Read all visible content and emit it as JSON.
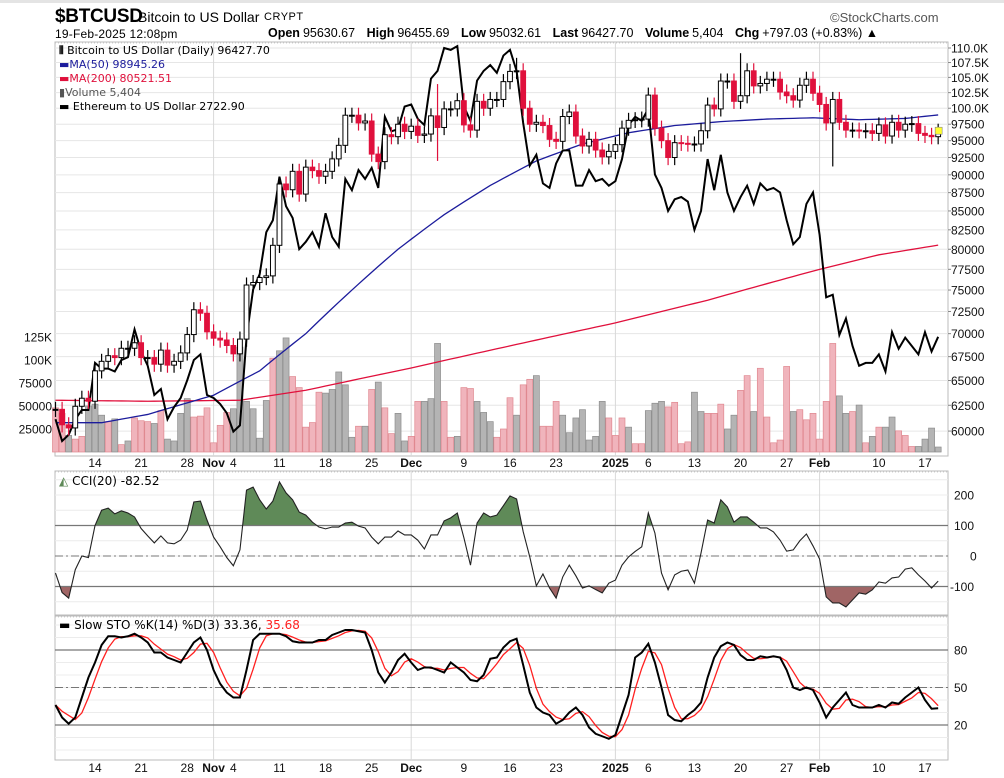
{
  "header": {
    "symbol": "$BTCUSD",
    "name": "Bitcoin to US Dollar",
    "exchange": "CRYPT",
    "copyright": "©StockCharts.com",
    "datetime": "19-Feb-2025 12:08pm",
    "quote": [
      {
        "label": "Open",
        "value": "95630.67"
      },
      {
        "label": "High",
        "value": "96455.69"
      },
      {
        "label": "Low",
        "value": "95032.61"
      },
      {
        "label": "Last",
        "value": "96427.70"
      },
      {
        "label": "Volume",
        "value": "5,404"
      },
      {
        "label": "Chg",
        "value": "+797.03 (+0.83%) ▲"
      }
    ]
  },
  "legend": {
    "price": "Bitcoin to US Dollar (Daily) 96427.70",
    "ma50": "MA(50) 98945.26",
    "ma200": "MA(200) 80521.51",
    "volume": "Volume 5,404",
    "eth": "Ethereum to US Dollar 2722.90",
    "cci": "CCI(20) -82.52",
    "sto_prefix": "Slow STO %K(14) %D(3) 33.36,",
    "sto_d": "35.68"
  },
  "colors": {
    "up_candle": "#000000",
    "down_candle": "#e0103c",
    "ma50": "#1c1c9c",
    "ma200": "#e0103c",
    "eth_line": "#000000",
    "volume_up": "#b4b4b4",
    "volume_down": "#f0b4bc",
    "cci_overbought_fill": "#5f8a58",
    "cci_oversold_fill": "#a06565",
    "sto_k": "#000000",
    "sto_d": "#ff2020",
    "last_marker": "#ffff30"
  },
  "chart_data": {
    "type": "candlestick",
    "scale": "log",
    "grid": true,
    "dates": [
      "2024-10-08",
      "2024-10-09",
      "2024-10-10",
      "2024-10-11",
      "2024-10-12",
      "2024-10-13",
      "2024-10-14",
      "2024-10-15",
      "2024-10-16",
      "2024-10-17",
      "2024-10-18",
      "2024-10-19",
      "2024-10-20",
      "2024-10-21",
      "2024-10-22",
      "2024-10-23",
      "2024-10-24",
      "2024-10-25",
      "2024-10-26",
      "2024-10-27",
      "2024-10-28",
      "2024-10-29",
      "2024-10-30",
      "2024-10-31",
      "2024-11-01",
      "2024-11-02",
      "2024-11-03",
      "2024-11-04",
      "2024-11-05",
      "2024-11-06",
      "2024-11-07",
      "2024-11-08",
      "2024-11-09",
      "2024-11-10",
      "2024-11-11",
      "2024-11-12",
      "2024-11-13",
      "2024-11-14",
      "2024-11-15",
      "2024-11-16",
      "2024-11-17",
      "2024-11-18",
      "2024-11-19",
      "2024-11-20",
      "2024-11-21",
      "2024-11-22",
      "2024-11-23",
      "2024-11-24",
      "2024-11-25",
      "2024-11-26",
      "2024-11-27",
      "2024-11-28",
      "2024-11-29",
      "2024-11-30",
      "2024-12-01",
      "2024-12-02",
      "2024-12-03",
      "2024-12-04",
      "2024-12-05",
      "2024-12-06",
      "2024-12-07",
      "2024-12-08",
      "2024-12-09",
      "2024-12-10",
      "2024-12-11",
      "2024-12-12",
      "2024-12-13",
      "2024-12-14",
      "2024-12-15",
      "2024-12-16",
      "2024-12-17",
      "2024-12-18",
      "2024-12-19",
      "2024-12-20",
      "2024-12-21",
      "2024-12-22",
      "2024-12-23",
      "2024-12-24",
      "2024-12-25",
      "2024-12-26",
      "2024-12-27",
      "2024-12-28",
      "2024-12-29",
      "2024-12-30",
      "2024-12-31",
      "2025-01-01",
      "2025-01-02",
      "2025-01-03",
      "2025-01-04",
      "2025-01-05",
      "2025-01-06",
      "2025-01-07",
      "2025-01-08",
      "2025-01-09",
      "2025-01-10",
      "2025-01-11",
      "2025-01-12",
      "2025-01-13",
      "2025-01-14",
      "2025-01-15",
      "2025-01-16",
      "2025-01-17",
      "2025-01-18",
      "2025-01-19",
      "2025-01-20",
      "2025-01-21",
      "2025-01-22",
      "2025-01-23",
      "2025-01-24",
      "2025-01-25",
      "2025-01-26",
      "2025-01-27",
      "2025-01-28",
      "2025-01-29",
      "2025-01-30",
      "2025-01-31",
      "2025-02-01",
      "2025-02-02",
      "2025-02-03",
      "2025-02-04",
      "2025-02-05",
      "2025-02-06",
      "2025-02-07",
      "2025-02-08",
      "2025-02-09",
      "2025-02-10",
      "2025-02-11",
      "2025-02-12",
      "2025-02-13",
      "2025-02-14",
      "2025-02-15",
      "2025-02-16",
      "2025-02-17",
      "2025-02-18",
      "2025-02-19"
    ],
    "btc_close": [
      62100,
      60600,
      60300,
      62400,
      63200,
      62900,
      66000,
      67000,
      67600,
      67400,
      68400,
      68400,
      69000,
      67400,
      67400,
      66700,
      68200,
      66600,
      67000,
      67900,
      69900,
      72700,
      72300,
      70200,
      69500,
      69300,
      68700,
      67800,
      69400,
      75600,
      75900,
      76500,
      76700,
      80500,
      88700,
      87900,
      90500,
      87300,
      91100,
      90600,
      89800,
      90500,
      92300,
      94300,
      98900,
      98900,
      97700,
      98000,
      93000,
      91900,
      95900,
      95600,
      97500,
      96400,
      97200,
      95800,
      96000,
      98800,
      97000,
      99900,
      99900,
      101200,
      97400,
      96600,
      101100,
      100000,
      101400,
      101400,
      104300,
      106000,
      106100,
      100000,
      97500,
      97800,
      97300,
      95200,
      94900,
      98700,
      99400,
      95700,
      94200,
      95200,
      93600,
      92600,
      93400,
      94400,
      96900,
      98100,
      98200,
      98300,
      102100,
      96900,
      95000,
      92500,
      94700,
      94600,
      94500,
      94500,
      96500,
      100500,
      99900,
      104400,
      104400,
      101100,
      102000,
      106100,
      103600,
      104000,
      104700,
      104700,
      102600,
      102000,
      101300,
      103700,
      104700,
      102400,
      100600,
      97700,
      101400,
      97800,
      96600,
      96600,
      96500,
      96500,
      96100,
      97400,
      95700,
      97800,
      96600,
      97500,
      97600,
      96100,
      95800,
      95600,
      96427.7
    ],
    "btc_extremes": {
      "2024-12-05": {
        "high": 103900,
        "low": 92000
      },
      "2024-12-17": {
        "high": 108300
      },
      "2025-01-20": {
        "high": 109100
      },
      "2025-02-03": {
        "low": 91200
      }
    },
    "eth_close": [
      2440,
      2370,
      2390,
      2440,
      2470,
      2470,
      2630,
      2610,
      2610,
      2600,
      2640,
      2650,
      2750,
      2670,
      2620,
      2520,
      2540,
      2440,
      2480,
      2510,
      2570,
      2640,
      2660,
      2520,
      2510,
      2490,
      2460,
      2400,
      2420,
      2720,
      2900,
      2960,
      3130,
      3180,
      3370,
      3240,
      3190,
      3060,
      3090,
      3130,
      3070,
      3210,
      3110,
      3070,
      3360,
      3310,
      3400,
      3360,
      3410,
      3320,
      3650,
      3580,
      3590,
      3700,
      3710,
      3640,
      3610,
      3840,
      3880,
      4000,
      3990,
      4010,
      3700,
      3630,
      3830,
      3880,
      3910,
      3870,
      3960,
      3990,
      3880,
      3620,
      3420,
      3470,
      3340,
      3320,
      3430,
      3490,
      3490,
      3330,
      3330,
      3400,
      3350,
      3360,
      3330,
      3350,
      3450,
      3610,
      3650,
      3630,
      3690,
      3380,
      3320,
      3220,
      3270,
      3280,
      3260,
      3140,
      3220,
      3450,
      3310,
      3470,
      3300,
      3220,
      3280,
      3330,
      3250,
      3340,
      3310,
      3320,
      3300,
      3180,
      3080,
      3110,
      3250,
      3300,
      3120,
      2870,
      2880,
      2730,
      2790,
      2690,
      2620,
      2630,
      2630,
      2660,
      2600,
      2740,
      2680,
      2720,
      2690,
      2660,
      2740,
      2670,
      2722.9
    ],
    "ma50": [
      [
        "2024-10-08",
        60800
      ],
      [
        "2024-10-15",
        60800
      ],
      [
        "2024-10-22",
        61600
      ],
      [
        "2024-11-01",
        63500
      ],
      [
        "2024-11-08",
        66000
      ],
      [
        "2024-11-15",
        70000
      ],
      [
        "2024-11-22",
        75000
      ],
      [
        "2024-11-29",
        80000
      ],
      [
        "2024-12-06",
        84500
      ],
      [
        "2024-12-13",
        88500
      ],
      [
        "2024-12-20",
        92000
      ],
      [
        "2024-12-27",
        94500
      ],
      [
        "2025-01-03",
        96200
      ],
      [
        "2025-01-10",
        97300
      ],
      [
        "2025-01-17",
        97900
      ],
      [
        "2025-01-24",
        98300
      ],
      [
        "2025-01-31",
        98500
      ],
      [
        "2025-02-07",
        98200
      ],
      [
        "2025-02-14",
        98400
      ],
      [
        "2025-02-19",
        98945.26
      ]
    ],
    "ma200": [
      [
        "2024-10-08",
        63000
      ],
      [
        "2024-10-22",
        62900
      ],
      [
        "2024-11-05",
        63000
      ],
      [
        "2024-11-15",
        64000
      ],
      [
        "2024-12-01",
        66300
      ],
      [
        "2024-12-15",
        68500
      ],
      [
        "2025-01-01",
        71200
      ],
      [
        "2025-01-15",
        73800
      ],
      [
        "2025-02-01",
        77500
      ],
      [
        "2025-02-10",
        79300
      ],
      [
        "2025-02-19",
        80521.51
      ]
    ],
    "volume": [
      48000,
      42000,
      18000,
      14000,
      17000,
      50000,
      52000,
      40000,
      33000,
      36000,
      8000,
      12000,
      37000,
      34000,
      33000,
      31000,
      45000,
      14000,
      12000,
      42000,
      58000,
      38000,
      39000,
      48000,
      10000,
      29000,
      43000,
      47000,
      114000,
      55000,
      47000,
      15000,
      56000,
      102000,
      110000,
      124000,
      82000,
      70000,
      27000,
      32000,
      65000,
      64000,
      68000,
      87000,
      73000,
      16000,
      28000,
      28000,
      68000,
      76000,
      48000,
      20000,
      42000,
      12000,
      17000,
      55000,
      55000,
      58000,
      118000,
      55000,
      16000,
      17000,
      70000,
      69000,
      55000,
      43000,
      33000,
      16000,
      25000,
      59000,
      40000,
      73000,
      79000,
      83000,
      28000,
      28000,
      55000,
      40000,
      21000,
      37000,
      46000,
      13000,
      17000,
      55000,
      37000,
      18000,
      37000,
      27000,
      9000,
      9000,
      45000,
      53000,
      55000,
      49000,
      54000,
      9000,
      11000,
      65000,
      44000,
      42000,
      42000,
      52000,
      25000,
      40000,
      67000,
      83000,
      44000,
      91000,
      38000,
      10000,
      13000,
      93000,
      44000,
      46000,
      35000,
      42000,
      14000,
      55000,
      118000,
      61000,
      42000,
      44000,
      51000,
      10000,
      17000,
      27000,
      27000,
      38000,
      23000,
      18000,
      6000,
      6000,
      14000,
      26000,
      5404
    ],
    "volume_dir": "ddudduuudududdduduuuudddddduuuuuuduuddddduuuuudududduudduuuddudduuudddudduddduuuuuuudddudduuudddduuddduuddudddddudddddduudududuudddu",
    "cci": [
      -56,
      -120,
      -138,
      -45,
      0,
      -5,
      100,
      150,
      157,
      138,
      148,
      141,
      128,
      90,
      66,
      43,
      66,
      43,
      40,
      52,
      85,
      177,
      180,
      118,
      62,
      30,
      -5,
      -32,
      20,
      216,
      226,
      184,
      154,
      180,
      243,
      207,
      184,
      144,
      134,
      111,
      95,
      89,
      95,
      95,
      108,
      111,
      98,
      92,
      62,
      40,
      62,
      62,
      82,
      69,
      69,
      52,
      23,
      69,
      69,
      115,
      125,
      141,
      60,
      -30,
      108,
      141,
      128,
      134,
      165,
      197,
      187,
      80,
      -3,
      -98,
      -59,
      -105,
      -138,
      -69,
      -30,
      -65,
      -105,
      -98,
      -110,
      -121,
      -89,
      -79,
      -30,
      -3,
      15,
      30,
      141,
      75,
      -56,
      -111,
      -62,
      -50,
      -46,
      -89,
      10,
      118,
      108,
      184,
      161,
      111,
      128,
      128,
      111,
      92,
      92,
      79,
      52,
      16,
      20,
      50,
      72,
      33,
      -10,
      -134,
      -154,
      -154,
      -167,
      -144,
      -121,
      -125,
      -111,
      -85,
      -89,
      -72,
      -69,
      -43,
      -39,
      -62,
      -82,
      -105,
      -82.52
    ],
    "sto_k": [
      36,
      26,
      21,
      26,
      42,
      58,
      70,
      84,
      91,
      91,
      90,
      91,
      93,
      90,
      86,
      78,
      78,
      74,
      72,
      70,
      78,
      86,
      90,
      80,
      64,
      53,
      46,
      42,
      42,
      64,
      88,
      93,
      93,
      93,
      93,
      91,
      87,
      86,
      86,
      86,
      88,
      88,
      92,
      94,
      96,
      96,
      95,
      94,
      80,
      62,
      54,
      62,
      72,
      77,
      70,
      64,
      66,
      66,
      64,
      62,
      70,
      66,
      62,
      56,
      55,
      60,
      73,
      74,
      82,
      87,
      89,
      68,
      46,
      34,
      30,
      28,
      21,
      24,
      30,
      34,
      28,
      18,
      13,
      11,
      9,
      12,
      28,
      44,
      74,
      78,
      85,
      70,
      50,
      28,
      24,
      23,
      28,
      32,
      38,
      58,
      74,
      83,
      86,
      84,
      76,
      72,
      72,
      75,
      74,
      75,
      74,
      64,
      50,
      48,
      50,
      48,
      38,
      26,
      34,
      40,
      46,
      36,
      34,
      34,
      34,
      36,
      34,
      38,
      37,
      42,
      46,
      50,
      40,
      33,
      33.36
    ],
    "sto_d_period": 3,
    "price_axis": [
      [
        "110.0K",
        110000
      ],
      [
        "107.5K",
        107500
      ],
      [
        "105.0K",
        105000
      ],
      [
        "102.5K",
        102500
      ],
      [
        "100.0K",
        100000
      ],
      [
        "97500",
        97500
      ],
      [
        "95000",
        95000
      ],
      [
        "92500",
        92500
      ],
      [
        "90000",
        90000
      ],
      [
        "87500",
        87500
      ],
      [
        "85000",
        85000
      ],
      [
        "82500",
        82500
      ],
      [
        "80000",
        80000
      ],
      [
        "77500",
        77500
      ],
      [
        "75000",
        75000
      ],
      [
        "72500",
        72500
      ],
      [
        "70000",
        70000
      ],
      [
        "67500",
        67500
      ],
      [
        "65000",
        65000
      ],
      [
        "62500",
        62500
      ],
      [
        "60000",
        60000
      ]
    ],
    "volume_axis": [
      [
        "125K",
        125000
      ],
      [
        "100K",
        100000
      ],
      [
        "75000",
        75000
      ],
      [
        "50000",
        50000
      ],
      [
        "25000",
        25000
      ]
    ],
    "cci_axis": [
      [
        "200",
        200
      ],
      [
        "100",
        100
      ],
      [
        "0",
        0
      ],
      [
        "-100",
        -100
      ]
    ],
    "sto_axis": [
      [
        "80",
        80
      ],
      [
        "50",
        50
      ],
      [
        "20",
        20
      ]
    ],
    "x_axis": [
      [
        "2024-10-14",
        "14",
        false
      ],
      [
        "2024-10-21",
        "21",
        false
      ],
      [
        "2024-10-28",
        "28",
        false
      ],
      [
        "2024-11-01",
        "Nov",
        true
      ],
      [
        "2024-11-04",
        "4",
        false
      ],
      [
        "2024-11-11",
        "11",
        false
      ],
      [
        "2024-11-18",
        "18",
        false
      ],
      [
        "2024-11-25",
        "25",
        false
      ],
      [
        "2024-12-01",
        "Dec",
        true
      ],
      [
        "2024-12-09",
        "9",
        false
      ],
      [
        "2024-12-16",
        "16",
        false
      ],
      [
        "2024-12-23",
        "23",
        false
      ],
      [
        "2025-01-01",
        "2025",
        true
      ],
      [
        "2025-01-06",
        "6",
        false
      ],
      [
        "2025-01-13",
        "13",
        false
      ],
      [
        "2025-01-20",
        "20",
        false
      ],
      [
        "2025-01-27",
        "27",
        false
      ],
      [
        "2025-02-01",
        "Feb",
        true
      ],
      [
        "2025-02-10",
        "10",
        false
      ],
      [
        "2025-02-17",
        "17",
        false
      ]
    ]
  }
}
